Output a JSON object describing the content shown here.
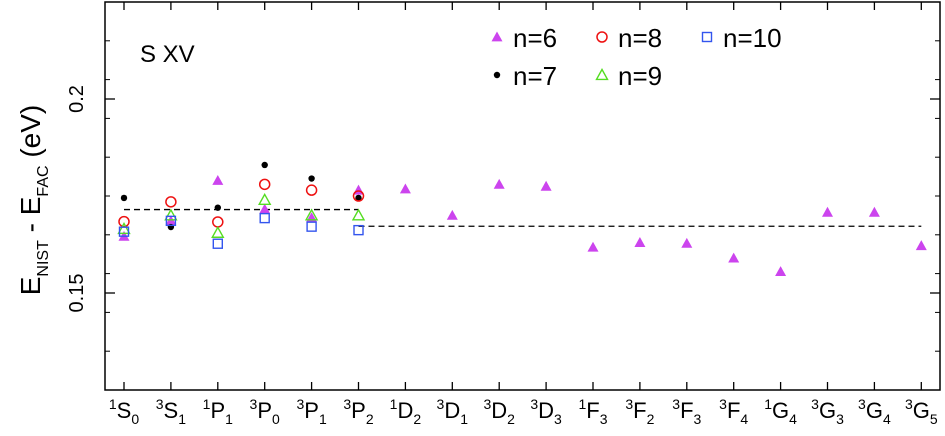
{
  "chart_data": {
    "type": "scatter",
    "annotation": "S XV",
    "ylabel": {
      "main1": "E",
      "sub1": "NIST",
      "mid": " - E",
      "sub2": "FAC",
      "tail": " (eV)"
    },
    "ylim": [
      0.125,
      0.225
    ],
    "yticks": [
      {
        "value": 0.15,
        "label": "0.15"
      },
      {
        "value": 0.2,
        "label": "0.2"
      }
    ],
    "categories": [
      {
        "sup": "1",
        "base": "S",
        "sub": "0"
      },
      {
        "sup": "3",
        "base": "S",
        "sub": "1"
      },
      {
        "sup": "1",
        "base": "P",
        "sub": "1"
      },
      {
        "sup": "3",
        "base": "P",
        "sub": "0"
      },
      {
        "sup": "3",
        "base": "P",
        "sub": "1"
      },
      {
        "sup": "3",
        "base": "P",
        "sub": "2"
      },
      {
        "sup": "1",
        "base": "D",
        "sub": "2"
      },
      {
        "sup": "3",
        "base": "D",
        "sub": "1"
      },
      {
        "sup": "3",
        "base": "D",
        "sub": "2"
      },
      {
        "sup": "3",
        "base": "D",
        "sub": "3"
      },
      {
        "sup": "1",
        "base": "F",
        "sub": "3"
      },
      {
        "sup": "3",
        "base": "F",
        "sub": "2"
      },
      {
        "sup": "3",
        "base": "F",
        "sub": "3"
      },
      {
        "sup": "3",
        "base": "F",
        "sub": "4"
      },
      {
        "sup": "1",
        "base": "G",
        "sub": "4"
      },
      {
        "sup": "3",
        "base": "G",
        "sub": "3"
      },
      {
        "sup": "3",
        "base": "G",
        "sub": "4"
      },
      {
        "sup": "3",
        "base": "G",
        "sub": "5"
      }
    ],
    "series": [
      {
        "name": "n=6",
        "marker": "filled-triangle",
        "color": "#cc44ee",
        "values": [
          0.1646,
          0.1686,
          0.179,
          0.1716,
          0.1694,
          0.1765,
          0.1768,
          0.17,
          0.178,
          0.1775,
          0.1618,
          0.163,
          0.1628,
          0.159,
          0.1555,
          0.1708,
          0.1708,
          0.1622
        ]
      },
      {
        "name": "n=7",
        "marker": "filled-circle",
        "color": "#000000",
        "values": [
          0.1745,
          0.167,
          0.172,
          0.183,
          0.1795,
          0.1745,
          null,
          null,
          null,
          null,
          null,
          null,
          null,
          null,
          null,
          null,
          null,
          null
        ]
      },
      {
        "name": "n=8",
        "marker": "open-circle",
        "color": "#ee1111",
        "values": [
          0.1684,
          0.1735,
          0.1683,
          0.178,
          0.1765,
          0.175,
          null,
          null,
          null,
          null,
          null,
          null,
          null,
          null,
          null,
          null,
          null,
          null
        ]
      },
      {
        "name": "n=9",
        "marker": "open-triangle",
        "color": "#55dd22",
        "values": [
          0.1665,
          0.17,
          0.1655,
          0.174,
          0.17,
          0.17,
          null,
          null,
          null,
          null,
          null,
          null,
          null,
          null,
          null,
          null,
          null,
          null
        ]
      },
      {
        "name": "n=10",
        "marker": "open-square",
        "color": "#3355ee",
        "values": [
          0.1658,
          0.1686,
          0.1627,
          0.1693,
          0.1671,
          0.1662,
          null,
          null,
          null,
          null,
          null,
          null,
          null,
          null,
          null,
          null,
          null,
          null
        ]
      }
    ],
    "reference_lines": [
      {
        "style": "dashed",
        "from": 0,
        "to": 5,
        "y": 0.1715
      },
      {
        "style": "dashed",
        "from": 5,
        "to": 17,
        "y": 0.1672
      }
    ],
    "legend_rows": [
      [
        "n=6",
        "n=8",
        "n=10"
      ],
      [
        "n=7",
        "n=9"
      ]
    ],
    "legend_position": "top-right",
    "grid": false
  }
}
